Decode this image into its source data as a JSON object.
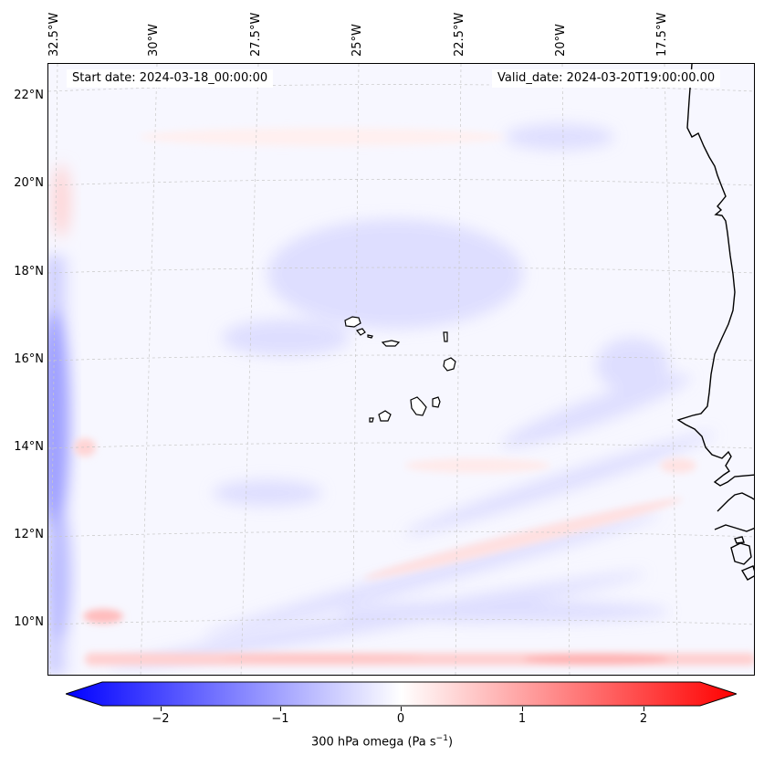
{
  "map": {
    "start_date": "Start date: 2024-03-18_00:00:00",
    "valid_date": "Valid_date: 2024-03-20T19:00:00.00",
    "lon_labels": [
      "32.5°W",
      "30°W",
      "27.5°W",
      "25°W",
      "22.5°W",
      "20°W",
      "17.5°W"
    ],
    "lat_labels": [
      "22°N",
      "20°N",
      "18°N",
      "16°N",
      "14°N",
      "12°N",
      "10°N"
    ],
    "features": [
      "coastline-west-africa",
      "cape-verde-islands"
    ]
  },
  "colorbar": {
    "label_prefix": "300 hPa omega (Pa s",
    "label_exp": "−1",
    "label_suffix": ")",
    "ticks": [
      "−2",
      "−1",
      "0",
      "1",
      "2"
    ],
    "min_color": "#0000ff",
    "mid_color": "#ffffff",
    "max_color": "#ff0000"
  }
}
